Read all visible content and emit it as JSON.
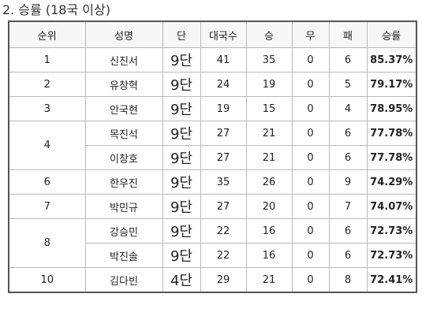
{
  "heading": "2. 승률 (18국 이상)",
  "table": {
    "headers": [
      "순위",
      "성명",
      "단",
      "대국수",
      "승",
      "무",
      "패",
      "승률"
    ],
    "rows": [
      {
        "rank": "1",
        "name": "신진서",
        "dan": "9단",
        "games": "41",
        "wins": "35",
        "draws": "0",
        "losses": "6",
        "rate": "85.37%"
      },
      {
        "rank": "2",
        "name": "유창혁",
        "dan": "9단",
        "games": "24",
        "wins": "19",
        "draws": "0",
        "losses": "5",
        "rate": "79.17%"
      },
      {
        "rank": "3",
        "name": "안국현",
        "dan": "9단",
        "games": "19",
        "wins": "15",
        "draws": "0",
        "losses": "4",
        "rate": "78.95%"
      },
      {
        "rank": "4",
        "name": "목진석",
        "dan": "9단",
        "games": "27",
        "wins": "21",
        "draws": "0",
        "losses": "6",
        "rate": "77.78%"
      },
      {
        "rank": "",
        "name": "이창호",
        "dan": "9단",
        "games": "27",
        "wins": "21",
        "draws": "0",
        "losses": "6",
        "rate": "77.78%"
      },
      {
        "rank": "6",
        "name": "한우진",
        "dan": "9단",
        "games": "35",
        "wins": "26",
        "draws": "0",
        "losses": "9",
        "rate": "74.29%"
      },
      {
        "rank": "7",
        "name": "박민규",
        "dan": "9단",
        "games": "27",
        "wins": "20",
        "draws": "0",
        "losses": "7",
        "rate": "74.07%"
      },
      {
        "rank": "8",
        "name": "강승민",
        "dan": "9단",
        "games": "22",
        "wins": "16",
        "draws": "0",
        "losses": "6",
        "rate": "72.73%"
      },
      {
        "rank": "",
        "name": "박진솔",
        "dan": "9단",
        "games": "22",
        "wins": "16",
        "draws": "0",
        "losses": "6",
        "rate": "72.73%"
      },
      {
        "rank": "10",
        "name": "김다빈",
        "dan": "4단",
        "games": "29",
        "wins": "21",
        "draws": "0",
        "losses": "8",
        "rate": "72.41%"
      }
    ]
  }
}
